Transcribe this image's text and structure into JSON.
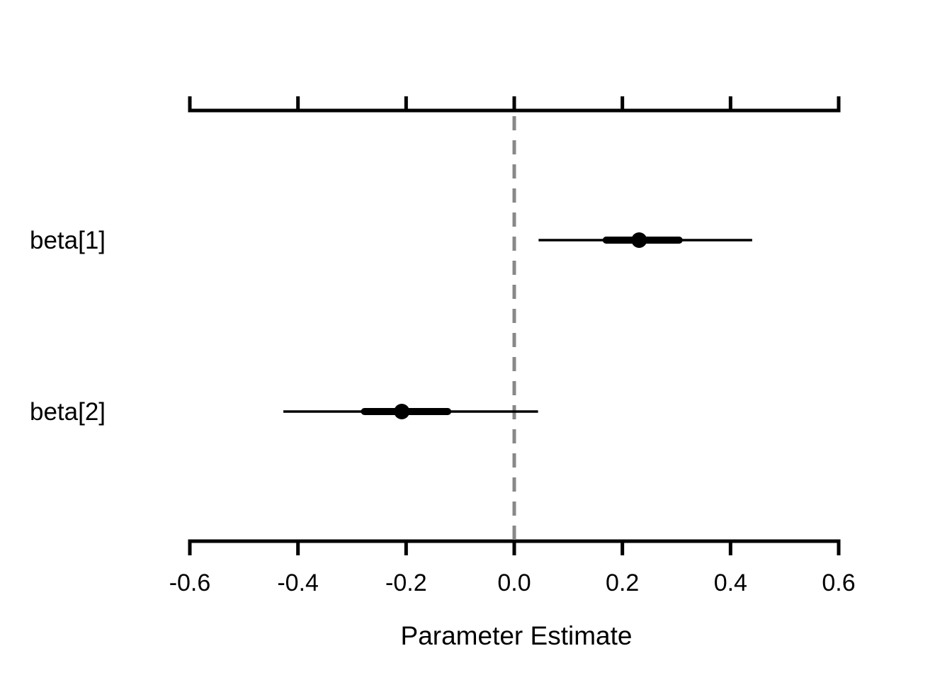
{
  "chart_data": {
    "type": "forest",
    "xlabel": "Parameter Estimate",
    "xlim": [
      -0.6,
      0.6
    ],
    "xticks": [
      -0.6,
      -0.4,
      -0.2,
      0.0,
      0.2,
      0.4,
      0.6
    ],
    "xtick_labels": [
      "-0.6",
      "-0.4",
      "-0.2",
      "0.0",
      "0.2",
      "0.4",
      "0.6"
    ],
    "reference_line": {
      "x": 0.0,
      "style": "dashed",
      "color": "#888888"
    },
    "axes": [
      "top",
      "bottom"
    ],
    "grid": false,
    "parameters": [
      {
        "label": "beta[1]",
        "estimate": 0.231,
        "inner": [
          0.17,
          0.305
        ],
        "outer": [
          0.045,
          0.44
        ]
      },
      {
        "label": "beta[2]",
        "estimate": -0.208,
        "inner": [
          -0.277,
          -0.123
        ],
        "outer": [
          -0.427,
          0.044
        ]
      }
    ],
    "colors": {
      "marks": "#000000",
      "axis": "#000000"
    }
  }
}
